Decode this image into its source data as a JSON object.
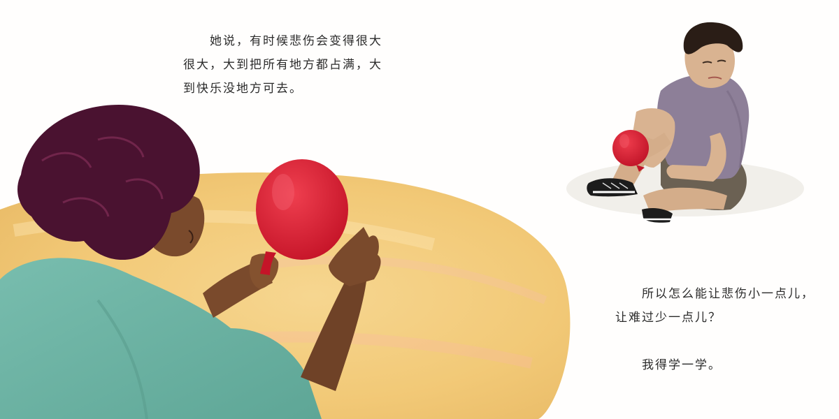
{
  "page": {
    "text_left": "　　她说，有时候悲伤会变得很大\n很大，大到把所有地方都占满，大\n到快乐没地方可去。",
    "text_right_1": "　　所以怎么能让悲伤小一点儿，\n让难过少一点儿？",
    "text_right_2": "　　我得学一学。"
  },
  "colors": {
    "background": "#fffefd",
    "table": "#f3cf82",
    "balloon": "#d81f33",
    "woman_shirt": "#6fb6a5",
    "woman_hair": "#4a1230",
    "woman_skin": "#7a4a2c",
    "boy_shirt": "#8d7f98",
    "boy_shorts": "#6b6153",
    "boy_skin": "#d9b391",
    "boy_hair": "#2a1d16"
  }
}
